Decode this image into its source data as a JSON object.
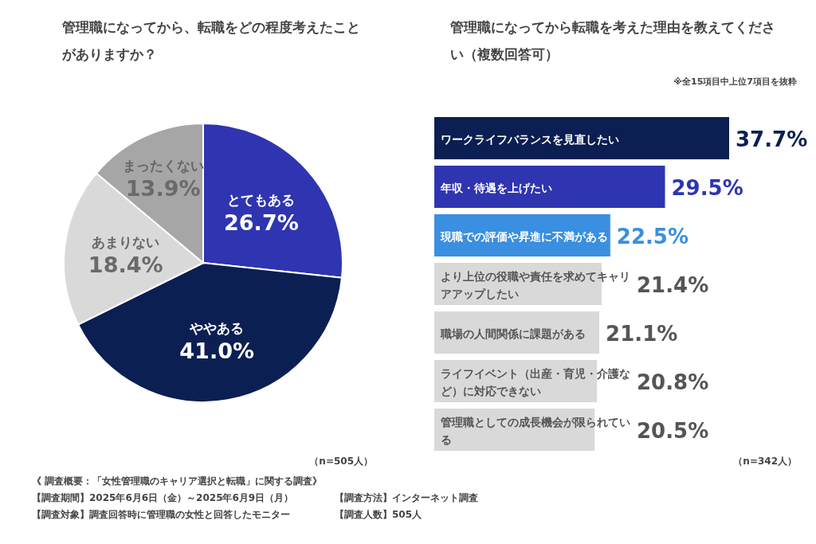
{
  "chart_data": [
    {
      "type": "pie",
      "title": "管理職になってから、転職をどの程度考えたことがありますか？",
      "categories": [
        "とてもある",
        "ややある",
        "あまりない",
        "まったくない"
      ],
      "values": [
        26.7,
        41.0,
        18.4,
        13.9
      ],
      "value_labels": [
        "26.7%",
        "41.0%",
        "18.4%",
        "13.9%"
      ],
      "colors": [
        "#2f35b0",
        "#0c1f52",
        "#d9d9d9",
        "#a6a6a6"
      ],
      "annotations": [
        "（n=505人）",
        "《 調査概要：「女性管理職のキャリア選択と転職」に関する調査》",
        "【調査期間】2025年6月6日（金）～2025年6月9日（月）",
        "【調査方法】インターネット調査",
        "【調査対象】調査回答時に管理職の女性と回答したモニター",
        "【調査人数】505人"
      ]
    },
    {
      "type": "bar",
      "orientation": "horizontal",
      "title": "管理職になってから転職を考えた理由を教えてください（複数回答可）",
      "subtitle": "※全15項目中上位7項目を抜粋",
      "categories": [
        "ワークライフバランスを見直したい",
        "年収・待遇を上げたい",
        "現職での評価や昇進に不満がある",
        "より上位の役職や責任を求めてキャリアアップしたい",
        "職場の人間関係に課題がある",
        "ライフイベント（出産・育児・介護など）に対応できない",
        "管理職としての成長機会が限られている"
      ],
      "values": [
        37.7,
        29.5,
        22.5,
        21.4,
        21.1,
        20.8,
        20.5
      ],
      "value_labels": [
        "37.7%",
        "29.5%",
        "22.5%",
        "21.4%",
        "21.1%",
        "20.8%",
        "20.5%"
      ],
      "colors": [
        "#0c1f52",
        "#2f35b0",
        "#3a8fe0",
        "#d9d9d9",
        "#d9d9d9",
        "#d9d9d9",
        "#d9d9d9"
      ],
      "annotations": [
        "（n=342人）"
      ]
    }
  ]
}
